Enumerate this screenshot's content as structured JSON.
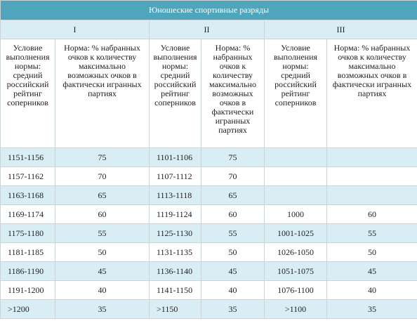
{
  "title": "Юношеские спортивные разряды",
  "groups": [
    "I",
    "II",
    "III"
  ],
  "headers": [
    "Условие выполнения нормы: средний российский рейтинг соперников",
    "Норма: % набранных очков к количеству максимально возможных очков в фактически игранных партиях",
    "Условие выполнения нормы: средний российский рейтинг соперников",
    "Норма: % набранных очков к количеству максимально возможных очков в фактически игранных партиях",
    "Условие выполнения нормы: средний российский рейтинг соперников",
    "Норма: % набранных очков к количеству максимально возможных очков в фактически игранных партиях"
  ],
  "rows": [
    [
      "1151-1156",
      75,
      "1101-1106",
      75,
      null,
      null
    ],
    [
      "1157-1162",
      70,
      "1107-1112",
      70,
      null,
      null
    ],
    [
      "1163-1168",
      65,
      "1113-1118",
      65,
      null,
      null
    ],
    [
      "1169-1174",
      60,
      "1119-1124",
      60,
      "1000",
      60
    ],
    [
      "1175-1180",
      55,
      "1125-1130",
      55,
      "1001-1025",
      55
    ],
    [
      "1181-1185",
      50,
      "1131-1135",
      50,
      "1026-1050",
      50
    ],
    [
      "1186-1190",
      45,
      "1136-1140",
      45,
      "1051-1075",
      45
    ],
    [
      "1191-1200",
      40,
      "1141-1150",
      40,
      "1076-1100",
      40
    ],
    [
      ">1200",
      35,
      ">1150",
      35,
      ">1100",
      35
    ]
  ]
}
